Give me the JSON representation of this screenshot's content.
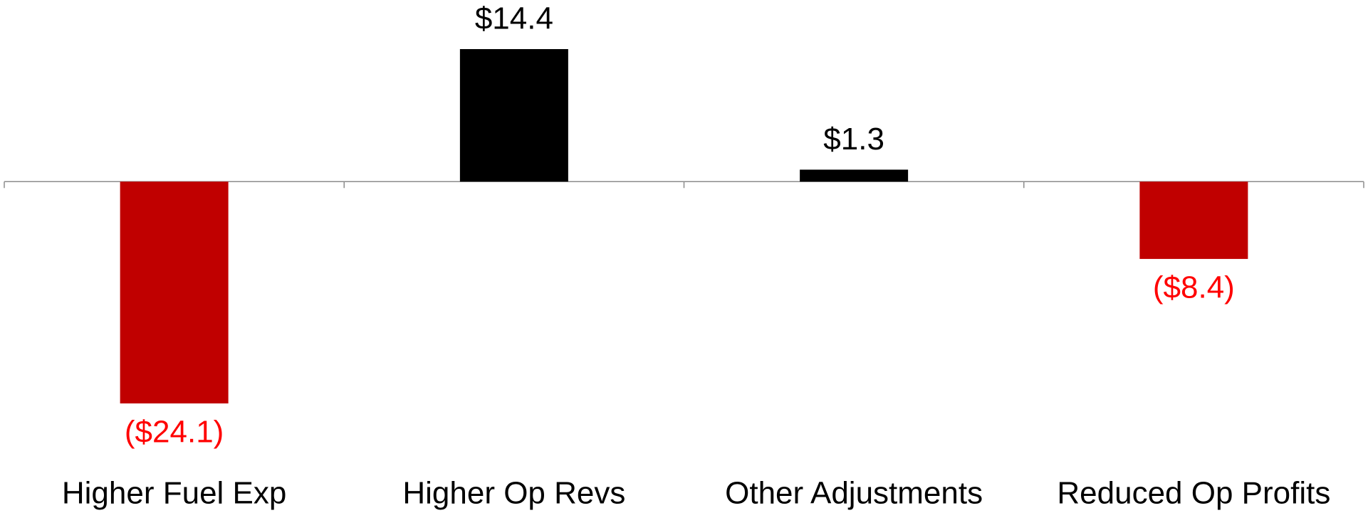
{
  "chart_data": {
    "type": "bar",
    "categories": [
      "Higher Fuel Exp",
      "Higher Op Revs",
      "Other Adjustments",
      "Reduced Op Profits"
    ],
    "values": [
      -24.1,
      14.4,
      1.3,
      -8.4
    ],
    "value_labels": [
      "($24.1)",
      "$14.4",
      "$1.3",
      "($8.4)"
    ],
    "colors": [
      "#c00000",
      "#000000",
      "#000000",
      "#c00000"
    ],
    "label_colors": [
      "#ff0000",
      "#000000",
      "#000000",
      "#ff0000"
    ]
  }
}
